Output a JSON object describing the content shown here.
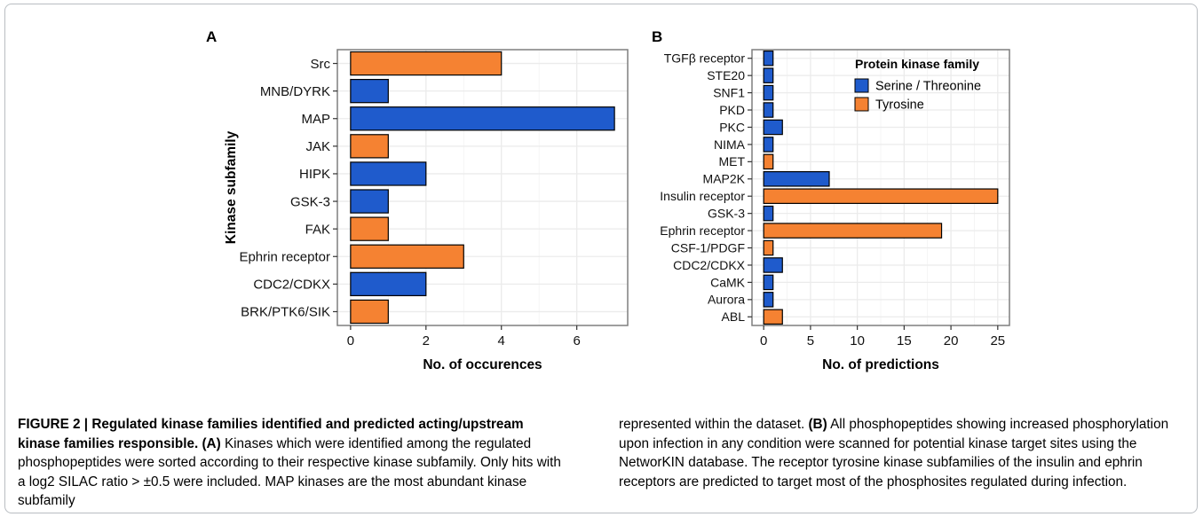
{
  "chart_data": [
    {
      "panel": "A",
      "type": "bar",
      "orientation": "horizontal",
      "categories": [
        "Src",
        "MNB/DYRK",
        "MAP",
        "JAK",
        "HIPK",
        "GSK-3",
        "FAK",
        "Ephrin receptor",
        "CDC2/CDKX",
        "BRK/PTK6/SIK"
      ],
      "values": [
        4,
        1,
        7,
        1,
        2,
        1,
        1,
        3,
        2,
        1
      ],
      "families": [
        "Tyrosine",
        "Serine / Threonine",
        "Serine / Threonine",
        "Tyrosine",
        "Serine / Threonine",
        "Serine / Threonine",
        "Tyrosine",
        "Tyrosine",
        "Serine / Threonine",
        "Tyrosine"
      ],
      "xlabel": "No. of occurences",
      "ylabel": "Kinase subfamily",
      "xlim": [
        -0.35,
        7.35
      ],
      "xticks": [
        0,
        2,
        4,
        6
      ],
      "grid": true
    },
    {
      "panel": "B",
      "type": "bar",
      "orientation": "horizontal",
      "categories": [
        "TGFβ receptor",
        "STE20",
        "SNF1",
        "PKD",
        "PKC",
        "NIMA",
        "MET",
        "MAP2K",
        "Insulin receptor",
        "GSK-3",
        "Ephrin receptor",
        "CSF-1/PDGF",
        "CDC2/CDKX",
        "CaMK",
        "Aurora",
        "ABL"
      ],
      "values": [
        1,
        1,
        1,
        1,
        2,
        1,
        1,
        7,
        25,
        1,
        19,
        1,
        2,
        1,
        1,
        2
      ],
      "families": [
        "Serine / Threonine",
        "Serine / Threonine",
        "Serine / Threonine",
        "Serine / Threonine",
        "Serine / Threonine",
        "Serine / Threonine",
        "Tyrosine",
        "Serine / Threonine",
        "Tyrosine",
        "Serine / Threonine",
        "Tyrosine",
        "Tyrosine",
        "Serine / Threonine",
        "Serine / Threonine",
        "Serine / Threonine",
        "Tyrosine"
      ],
      "xlabel": "No. of predictions",
      "ylabel": "",
      "xlim": [
        -1.25,
        26.25
      ],
      "xticks": [
        0,
        5,
        10,
        15,
        20,
        25
      ],
      "grid": true,
      "legend": {
        "title": "Protein kinase family",
        "placement": "top-right",
        "entries": [
          "Serine / Threonine",
          "Tyrosine"
        ]
      }
    }
  ],
  "colors": {
    "Serine / Threonine": "#1f5bcc",
    "Tyrosine": "#f58232",
    "grid": "#ebebeb",
    "panel_border": "#7f7f7f"
  },
  "caption": {
    "left": [
      {
        "text": "FIGURE 2 | Regulated kinase families identified and predicted acting/upstream kinase families responsible.",
        "bold": true
      },
      {
        "text": " ",
        "bold": false
      },
      {
        "text": "(A)",
        "bold": true
      },
      {
        "text": " Kinases which were identified among the regulated phosphopeptides were sorted according to their respective kinase subfamily. Only hits with a log2 SILAC ratio > ±0.5 were included. MAP kinases are the most abundant kinase subfamily",
        "bold": false
      }
    ],
    "right": [
      {
        "text": "represented within the dataset. ",
        "bold": false
      },
      {
        "text": "(B)",
        "bold": true
      },
      {
        "text": " All phosphopeptides showing increased phosphorylation upon infection in any condition were scanned for potential kinase target sites using the NetworKIN database. The receptor tyrosine kinase subfamilies of the insulin and ephrin receptors are predicted to target most of the phosphosites regulated during infection.",
        "bold": false
      }
    ]
  }
}
